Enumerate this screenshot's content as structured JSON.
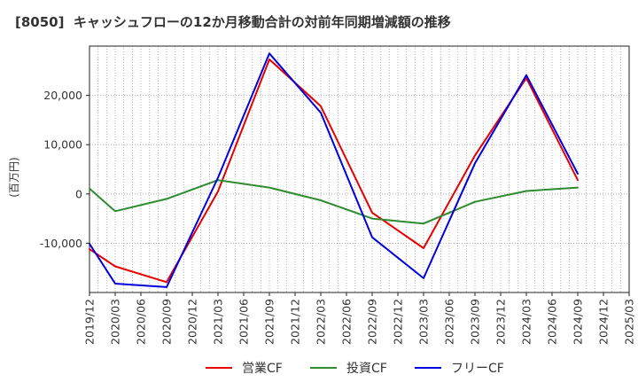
{
  "chart_data": {
    "type": "line",
    "title": "[8050]  キャッシュフローの12か月移動合計の対前年同期増減額の推移",
    "ylabel": "(百万円)",
    "xlim": [
      "2019/12",
      "2025/03"
    ],
    "ylim": [
      -20000,
      30000
    ],
    "x_ticks": [
      "2019/12",
      "2020/03",
      "2020/06",
      "2020/09",
      "2020/12",
      "2021/03",
      "2021/06",
      "2021/09",
      "2021/12",
      "2022/03",
      "2022/06",
      "2022/09",
      "2022/12",
      "2023/03",
      "2023/06",
      "2023/09",
      "2023/12",
      "2024/03",
      "2024/06",
      "2024/09",
      "2024/12",
      "2025/03"
    ],
    "y_ticks": [
      {
        "value": 20000,
        "label": "20,000"
      },
      {
        "value": 10000,
        "label": "10,000"
      },
      {
        "value": 0,
        "label": "0"
      },
      {
        "value": -10000,
        "label": "-10,000"
      }
    ],
    "x": [
      "2019/12",
      "2020/03",
      "2020/09",
      "2021/03",
      "2021/09",
      "2022/03",
      "2022/09",
      "2023/03",
      "2023/09",
      "2024/03",
      "2024/09"
    ],
    "series": [
      {
        "name": "営業CF",
        "color": "#e60000",
        "values": [
          -11200,
          -14700,
          -17900,
          500,
          27300,
          17800,
          -3800,
          -11000,
          7800,
          23500,
          2800
        ]
      },
      {
        "name": "投資CF",
        "color": "#2e8b2e",
        "values": [
          1100,
          -3500,
          -1000,
          2800,
          1300,
          -1300,
          -5000,
          -6000,
          -1600,
          600,
          1300
        ]
      },
      {
        "name": "フリーCF",
        "color": "#0000e0",
        "values": [
          -10100,
          -18200,
          -18900,
          3300,
          28500,
          16500,
          -8800,
          -17100,
          6200,
          24100,
          4100
        ]
      }
    ],
    "grid": true,
    "legend": "bottom"
  }
}
